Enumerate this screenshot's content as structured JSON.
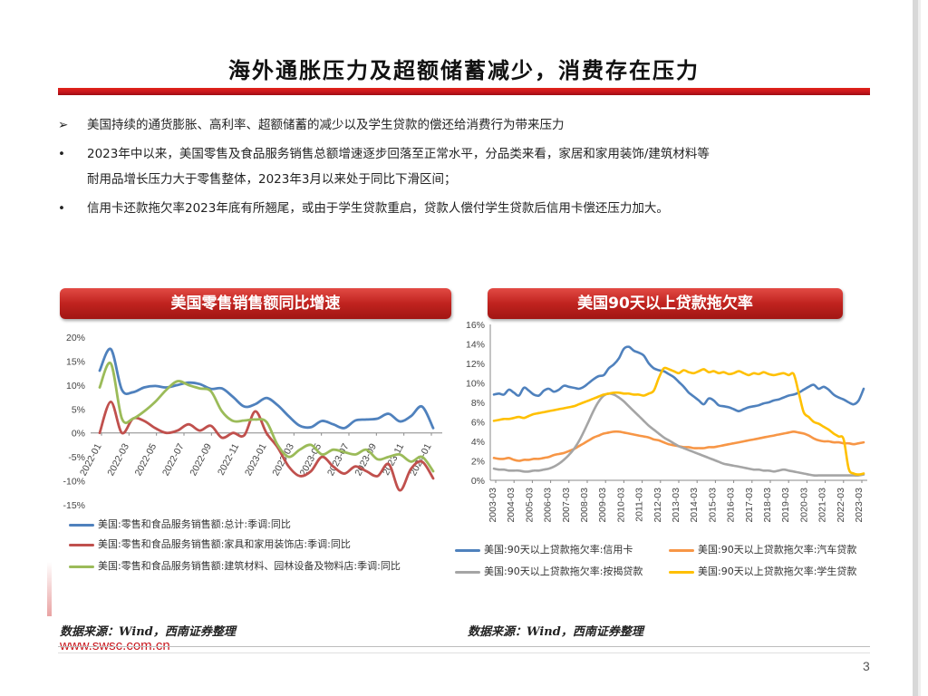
{
  "page": {
    "title": "海外通胀压力及超额储蓄减少，消费存在压力",
    "page_number": "3",
    "website": "www.swsc.com.cn",
    "bullets": [
      {
        "marker": "➢",
        "text": "美国持续的通货膨胀、高利率、超额储蓄的减少以及学生贷款的偿还给消费行为带来压力"
      },
      {
        "marker": "•",
        "text": "2023年中以来，美国零售及食品服务销售总额增速逐步回落至正常水平，分品类来看，家居和家用装饰/建筑材料等"
      },
      {
        "marker": "",
        "text": "耐用品增长压力大于零售整体，2023年3月以来处于同比下滑区间；"
      },
      {
        "marker": "•",
        "text": "信用卡还款拖欠率2023年底有所翘尾，或由于学生贷款重启，贷款人偿付学生贷款后信用卡偿还压力加大。"
      }
    ],
    "source_left": "数据来源：Wind，西南证券整理",
    "source_right": "数据来源：Wind，西南证券整理",
    "colors": {
      "accent": "#c8161d",
      "blue": "#4f81bd",
      "red": "#c0504d",
      "green": "#9bbb59",
      "orange": "#f79646",
      "gray": "#a5a5a5",
      "yellow": "#ffc000"
    }
  },
  "chart_data": [
    {
      "type": "line",
      "title": "美国零售销售额同比增速",
      "ylim": [
        -15,
        20
      ],
      "yticks": [
        "20%",
        "15%",
        "10%",
        "5%",
        "0%",
        "-5%",
        "-10%",
        "-15%"
      ],
      "x_tick_labels": [
        "2022-01",
        "2022-03",
        "2022-05",
        "2022-07",
        "2022-09",
        "2022-11",
        "2023-01",
        "2023-03",
        "2023-05",
        "2023-07",
        "2023-09",
        "2023-11",
        "2024-01"
      ],
      "series": [
        {
          "name": "美国:零售和食品服务销售额:总计:季调:同比",
          "color": "#4f81bd",
          "values": [
            13,
            17.5,
            9,
            8.5,
            9.5,
            9.8,
            9.5,
            10,
            10.5,
            10.2,
            9.2,
            9.3,
            7.5,
            5.5,
            6,
            7.3,
            5.8,
            3.5,
            1.5,
            1.2,
            2.5,
            1.8,
            1,
            2.6,
            2.8,
            3,
            4,
            2.4,
            3.5,
            5.5,
            1
          ]
        },
        {
          "name": "美国:零售和食品服务销售额:家具和家用装饰店:季调:同比",
          "color": "#c0504d",
          "values": [
            0,
            6.5,
            0,
            3,
            2.5,
            1,
            0,
            0.5,
            1.8,
            0.5,
            1.5,
            -1,
            0,
            -0.5,
            4.5,
            0,
            -3,
            -7,
            -9,
            -8,
            -5,
            -7,
            -8.5,
            -7,
            -8,
            -9,
            -6.5,
            -12,
            -7.5,
            -6,
            -9.5
          ]
        },
        {
          "name": "美国:零售和食品服务销售额:建筑材料、园林设备及物料店:季调:同比",
          "color": "#9bbb59",
          "values": [
            9.5,
            14.5,
            3,
            3,
            4.5,
            6.5,
            9,
            10.8,
            10,
            9.3,
            8.7,
            4.5,
            2.5,
            2.6,
            2.8,
            2.3,
            -2.5,
            -5,
            -3.5,
            -2.5,
            -4.5,
            -3.5,
            -4,
            -4.5,
            -3.5,
            -5.5,
            -5,
            -4.5,
            -6,
            -5,
            -8
          ]
        }
      ]
    },
    {
      "type": "line",
      "title": "美国90天以上贷款拖欠率",
      "ylim": [
        0,
        16
      ],
      "yticks": [
        "16%",
        "14%",
        "12%",
        "10%",
        "8%",
        "6%",
        "4%",
        "2%",
        "0%"
      ],
      "x_tick_labels": [
        "2003-03",
        "2004-03",
        "2005-03",
        "2006-03",
        "2007-03",
        "2008-03",
        "2009-03",
        "2010-03",
        "2011-03",
        "2012-03",
        "2013-03",
        "2014-03",
        "2015-03",
        "2016-03",
        "2017-03",
        "2018-03",
        "2019-03",
        "2020-03",
        "2021-03",
        "2022-03",
        "2023-03"
      ],
      "series": [
        {
          "name": "美国:90天以上贷款拖欠率:信用卡",
          "color": "#4f81bd",
          "values": [
            8.8,
            8.9,
            8.8,
            9.3,
            9.0,
            8.7,
            9.5,
            9.2,
            8.8,
            8.7,
            9.2,
            9.4,
            9.1,
            9.3,
            9.7,
            9.6,
            9.5,
            9.4,
            9.6,
            10.0,
            10.4,
            10.7,
            10.8,
            11.5,
            11.9,
            12.5,
            13.5,
            13.7,
            13.3,
            13.1,
            12.8,
            12.0,
            11.5,
            11.3,
            11.2,
            10.9,
            10.6,
            10.1,
            9.6,
            9.0,
            8.6,
            8.2,
            7.8,
            8.4,
            8.2,
            7.7,
            7.6,
            7.5,
            7.3,
            7.1,
            7.3,
            7.5,
            7.6,
            7.7,
            7.9,
            8.0,
            8.2,
            8.3,
            8.5,
            8.7,
            8.8,
            9.0,
            9.3,
            9.6,
            9.8,
            9.4,
            9.6,
            9.3,
            8.8,
            8.5,
            8.3,
            8.0,
            7.8,
            8.2,
            9.4
          ]
        },
        {
          "name": "美国:90天以上贷款拖欠率:汽车贷款",
          "color": "#f79646",
          "values": [
            2.3,
            2.2,
            2.2,
            2.3,
            2.1,
            2.0,
            2.1,
            2.1,
            2.2,
            2.2,
            2.3,
            2.4,
            2.6,
            2.7,
            2.8,
            3.0,
            3.2,
            3.5,
            3.8,
            4.1,
            4.4,
            4.6,
            4.8,
            4.9,
            5.0,
            5.0,
            4.9,
            4.8,
            4.7,
            4.6,
            4.5,
            4.4,
            4.2,
            4.1,
            3.9,
            3.7,
            3.6,
            3.5,
            3.4,
            3.4,
            3.3,
            3.3,
            3.3,
            3.4,
            3.4,
            3.5,
            3.6,
            3.7,
            3.8,
            3.9,
            4.0,
            4.1,
            4.2,
            4.3,
            4.4,
            4.5,
            4.6,
            4.7,
            4.8,
            4.9,
            5.0,
            4.9,
            4.8,
            4.6,
            4.3,
            4.1,
            4.0,
            4.0,
            3.9,
            3.9,
            3.8,
            3.8,
            3.7,
            3.8,
            3.9
          ]
        },
        {
          "name": "美国:90天以上贷款拖欠率:按揭贷款",
          "color": "#a5a5a5",
          "values": [
            1.2,
            1.1,
            1.1,
            1.0,
            1.0,
            1.0,
            0.9,
            0.9,
            1.0,
            1.0,
            1.1,
            1.2,
            1.4,
            1.7,
            2.1,
            2.6,
            3.2,
            4.0,
            5.0,
            6.1,
            7.2,
            8.1,
            8.7,
            8.9,
            8.8,
            8.5,
            8.1,
            7.6,
            7.1,
            6.6,
            6.1,
            5.6,
            5.2,
            4.8,
            4.4,
            4.1,
            3.8,
            3.5,
            3.3,
            3.1,
            2.9,
            2.7,
            2.5,
            2.3,
            2.1,
            1.9,
            1.7,
            1.6,
            1.5,
            1.4,
            1.3,
            1.2,
            1.1,
            1.1,
            1.0,
            1.0,
            0.9,
            1.0,
            1.1,
            1.0,
            0.9,
            0.8,
            0.7,
            0.6,
            0.5,
            0.5,
            0.5,
            0.5,
            0.5,
            0.5,
            0.5,
            0.5,
            0.5,
            0.5,
            0.6
          ]
        },
        {
          "name": "美国:90天以上贷款拖欠率:学生贷款",
          "color": "#ffc000",
          "values": [
            6.1,
            6.2,
            6.3,
            6.3,
            6.4,
            6.5,
            6.4,
            6.6,
            6.8,
            6.9,
            7.0,
            7.1,
            7.2,
            7.3,
            7.4,
            7.5,
            7.6,
            7.8,
            8.0,
            8.2,
            8.4,
            8.6,
            8.8,
            8.9,
            9.0,
            9.0,
            8.9,
            8.9,
            8.8,
            8.8,
            8.7,
            8.9,
            9.2,
            10.5,
            11.5,
            11.4,
            11.2,
            11.0,
            11.3,
            11.1,
            11.0,
            11.2,
            11.4,
            11.1,
            11.2,
            11.0,
            11.1,
            10.9,
            11.0,
            11.2,
            11.0,
            10.8,
            11.0,
            10.9,
            11.1,
            10.9,
            10.8,
            10.9,
            11.0,
            10.8,
            10.9,
            9.0,
            7.0,
            6.5,
            6.0,
            5.8,
            5.5,
            5.2,
            4.8,
            4.5,
            4.2,
            1.2,
            0.7,
            0.6,
            0.7
          ]
        }
      ]
    }
  ]
}
